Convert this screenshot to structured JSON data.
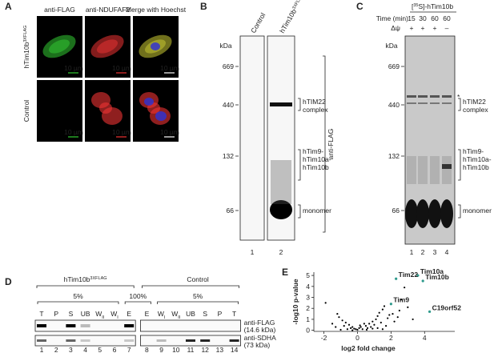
{
  "panels": {
    "A": {
      "label": "A",
      "columns": [
        "anti-FLAG",
        "anti-NDUFAF2",
        "Merge with Hoechst"
      ],
      "rows": [
        {
          "text": "hTim10b",
          "sup": "3XFLAG"
        },
        {
          "text": "Control"
        }
      ],
      "scale_bar": "10 µm"
    },
    "B": {
      "label": "B",
      "kda": "kDa",
      "markers": [
        669,
        440,
        132,
        66
      ],
      "lanes": [
        {
          "text": "Control"
        },
        {
          "text": "hTim10b",
          "sup": "3XFLAG"
        }
      ],
      "bands": [
        [
          "hTIM22",
          "complex"
        ],
        [
          "hTim9-",
          "hTim10a-",
          "hTim10b"
        ],
        [
          "monomer"
        ]
      ],
      "antibody": "anti-FLAG",
      "lane_numbers": [
        1,
        2
      ]
    },
    "C": {
      "label": "C",
      "header": {
        "open": "[",
        "sup": "35",
        "rest": "S]-hTim10b"
      },
      "time_label": "Time (min)",
      "times": [
        15,
        30,
        60,
        60
      ],
      "potential_label": "Δψ",
      "potential": [
        "+",
        "+",
        "+",
        "–"
      ],
      "kda": "kDa",
      "markers": [
        669,
        440,
        132,
        66
      ],
      "star": "*",
      "bands": [
        [
          "hTIM22",
          "complex"
        ],
        [
          "hTim9-",
          "hTim10a-",
          "hTim10b"
        ],
        [
          "monomer"
        ]
      ],
      "lane_numbers": [
        1,
        2,
        3,
        4
      ]
    },
    "D": {
      "label": "D",
      "groups": [
        {
          "text": "hTim10b",
          "sup": "3XFLAG"
        },
        {
          "text": "Control"
        }
      ],
      "fractions": [
        "5%",
        "100%",
        "5%"
      ],
      "lanes": [
        {
          "text": "T"
        },
        {
          "text": "P"
        },
        {
          "text": "S"
        },
        {
          "text": "UB"
        },
        {
          "text": "W",
          "sub": "II"
        },
        {
          "text": "W",
          "sub": "I"
        },
        {
          "text": "E"
        },
        {
          "text": "E"
        },
        {
          "text": "W",
          "sub": "I"
        },
        {
          "text": "W",
          "sub": "II"
        },
        {
          "text": "UB"
        },
        {
          "text": "S"
        },
        {
          "text": "P"
        },
        {
          "text": "T"
        }
      ],
      "antibodies": [
        [
          "anti-FLAG",
          "(14.6 kDa)"
        ],
        [
          "anti-SDHA",
          "(73 kDa)"
        ]
      ],
      "lane_numbers": [
        1,
        2,
        3,
        4,
        5,
        6,
        7,
        8,
        9,
        10,
        11,
        12,
        13,
        14
      ]
    },
    "E": {
      "label": "E",
      "type": "scatter",
      "x_label": "log2 fold change",
      "y_label": "-log10 p-value",
      "xlim": [
        -2.6,
        5.8
      ],
      "ylim": [
        -0.1,
        5.3
      ],
      "xticks": [
        -2,
        0,
        2,
        4
      ],
      "yticks": [
        0,
        1,
        2,
        3,
        4,
        5
      ],
      "highlight": {
        "color": "#2f9a8c",
        "labels": [
          "Tim10a",
          "Tim22",
          "Tim10b",
          "Tim9",
          "C19orf52"
        ],
        "x": [
          3.6,
          2.3,
          3.9,
          2.0,
          4.3
        ],
        "y": [
          5.0,
          4.7,
          4.5,
          2.4,
          1.7
        ]
      },
      "background": {
        "color": "#000000",
        "x": [
          -0.1,
          0.1,
          0.3,
          -0.3,
          0.5,
          -0.5,
          0.7,
          -0.7,
          0.9,
          -0.9,
          1.1,
          1.2,
          1.3,
          1.5,
          1.6,
          -1.1,
          -1.2,
          0.2,
          -0.2,
          0.6,
          -0.4,
          0.8,
          1.0,
          -0.8,
          1.4,
          1.8,
          2.1,
          2.5,
          3.0,
          2.8,
          2.6,
          1.9,
          -1.5,
          -1.9,
          0.0,
          0.4,
          -0.6,
          0.15,
          1.7,
          2.2,
          -1.3,
          0.9,
          2.4,
          1.2,
          3.3,
          -0.3,
          0.55,
          -1.0,
          1.5
        ],
        "y": [
          0.1,
          0.2,
          0.1,
          0.3,
          0.4,
          0.5,
          0.6,
          0.7,
          0.8,
          0.9,
          1.0,
          1.3,
          1.6,
          1.9,
          2.2,
          1.2,
          1.5,
          0.3,
          0.15,
          0.2,
          0.2,
          0.3,
          0.5,
          0.4,
          0.7,
          1.1,
          1.5,
          1.8,
          2.1,
          3.9,
          2.8,
          1.4,
          0.6,
          2.5,
          0.05,
          0.6,
          0.1,
          0.45,
          0.4,
          0.8,
          0.3,
          0.15,
          1.2,
          0.2,
          1.0,
          0.0,
          0.05,
          0.05,
          0.1
        ]
      }
    }
  }
}
